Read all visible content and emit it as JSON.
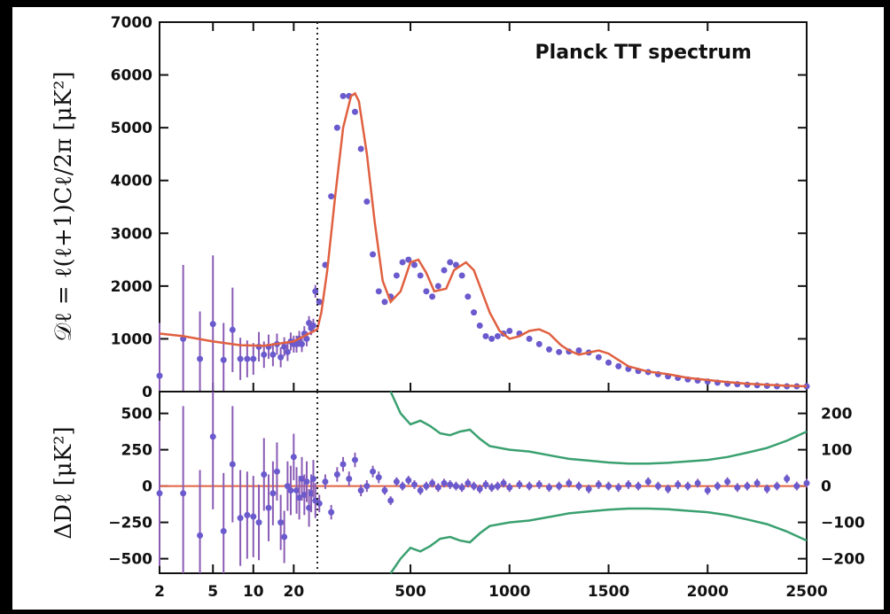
{
  "chart_data": [
    {
      "id": "top",
      "type": "scatter",
      "title": "Planck TT spectrum",
      "ylabel": "𝒟ℓ = ℓ(ℓ+1)Cℓ/2π  [μK²]",
      "xlabel": "",
      "xscale": "hybrid: log for ℓ<30, linear for ℓ≥30",
      "xlim": [
        2,
        2500
      ],
      "ylim": [
        0,
        7000
      ],
      "yticks": [
        "0",
        "1000",
        "2000",
        "3000",
        "4000",
        "5000",
        "6000",
        "7000"
      ],
      "ytick_values": [
        0,
        1000,
        2000,
        3000,
        4000,
        5000,
        6000,
        7000
      ],
      "colors": {
        "model": "#e06040",
        "binned": "#6a5acd",
        "errorbar": "#8a5bb5",
        "unbinned": "#999999",
        "divider": "#222222"
      },
      "model_curve": {
        "x": [
          2,
          3,
          5,
          8,
          12,
          20,
          30,
          50,
          80,
          120,
          160,
          200,
          220,
          240,
          280,
          320,
          360,
          400,
          450,
          500,
          540,
          580,
          620,
          680,
          720,
          780,
          820,
          860,
          900,
          950,
          1000,
          1050,
          1100,
          1150,
          1200,
          1260,
          1300,
          1350,
          1400,
          1450,
          1500,
          1550,
          1600,
          1700,
          1800,
          1900,
          2000,
          2100,
          2200,
          2300,
          2400,
          2500
        ],
        "y": [
          1100,
          1050,
          950,
          880,
          870,
          950,
          1180,
          1500,
          2300,
          3700,
          5000,
          5600,
          5650,
          5500,
          4500,
          3200,
          2100,
          1700,
          1900,
          2450,
          2500,
          2250,
          1900,
          1950,
          2300,
          2450,
          2300,
          1900,
          1500,
          1150,
          1000,
          1050,
          1150,
          1180,
          1100,
          880,
          780,
          700,
          740,
          780,
          720,
          600,
          480,
          380,
          330,
          260,
          220,
          180,
          150,
          130,
          110,
          100
        ]
      },
      "binned_points": {
        "x": [
          2,
          3,
          4,
          5,
          6,
          7,
          8,
          9,
          10,
          11,
          12,
          13,
          14,
          15,
          16,
          17,
          18,
          19,
          20,
          21,
          22,
          23,
          24,
          25,
          26,
          27,
          28,
          29,
          40,
          70,
          100,
          130,
          160,
          190,
          220,
          250,
          280,
          310,
          340,
          370,
          400,
          430,
          460,
          490,
          520,
          550,
          580,
          610,
          640,
          670,
          700,
          730,
          760,
          790,
          820,
          850,
          880,
          910,
          940,
          970,
          1000,
          1050,
          1100,
          1150,
          1200,
          1250,
          1300,
          1350,
          1400,
          1450,
          1500,
          1550,
          1600,
          1650,
          1700,
          1750,
          1800,
          1850,
          1900,
          1950,
          2000,
          2050,
          2100,
          2150,
          2200,
          2250,
          2300,
          2350,
          2400,
          2450,
          2500
        ],
        "y": [
          300,
          1000,
          620,
          1280,
          600,
          1170,
          620,
          620,
          620,
          850,
          700,
          850,
          700,
          900,
          650,
          850,
          750,
          950,
          900,
          900,
          1000,
          900,
          1100,
          1000,
          1300,
          1200,
          1250,
          1900,
          1700,
          2400,
          3700,
          5000,
          5600,
          5600,
          5300,
          4600,
          3600,
          2600,
          1900,
          1700,
          1800,
          2200,
          2450,
          2500,
          2400,
          2200,
          1900,
          1800,
          2000,
          2300,
          2450,
          2400,
          2200,
          1800,
          1500,
          1250,
          1050,
          1000,
          1050,
          1100,
          1150,
          1100,
          1000,
          900,
          800,
          750,
          760,
          780,
          740,
          650,
          550,
          480,
          430,
          390,
          370,
          330,
          290,
          260,
          230,
          210,
          190,
          170,
          150,
          140,
          130,
          120,
          110,
          100,
          100,
          100,
          100
        ],
        "err": [
          1000,
          1400,
          900,
          1300,
          700,
          800,
          400,
          350,
          300,
          280,
          250,
          230,
          220,
          200,
          190,
          180,
          170,
          170,
          160,
          160,
          150,
          150,
          140,
          140,
          130,
          130,
          130,
          120,
          60,
          50,
          50,
          50,
          50,
          50,
          50,
          40,
          40,
          40,
          40,
          30,
          30,
          30,
          30,
          30,
          30,
          30,
          30,
          30,
          30,
          30,
          30,
          30,
          30,
          30,
          30,
          30,
          30,
          30,
          30,
          30,
          30,
          30,
          30,
          30,
          30,
          30,
          30,
          30,
          30,
          30,
          30,
          30,
          30,
          30,
          30,
          30,
          30,
          30,
          30,
          30,
          30,
          30,
          30,
          30,
          30,
          30,
          30,
          30,
          30,
          30,
          30
        ]
      },
      "divider_x": 30
    },
    {
      "id": "bottom",
      "type": "scatter",
      "ylabel": "ΔDℓ [μK²]",
      "xlabel": "",
      "xlim": [
        2,
        2500
      ],
      "ylim": [
        -600,
        650
      ],
      "yticks_left": [
        "−500",
        "−250",
        "0",
        "250",
        "500"
      ],
      "ytick_left_values": [
        -500,
        -250,
        0,
        250,
        500
      ],
      "yticks_right": [
        "−200",
        "−100",
        "0",
        "100",
        "200"
      ],
      "ytick_right_values": [
        -200,
        -100,
        0,
        100,
        200
      ],
      "ylim_right": [
        -240,
        260
      ],
      "xticks": [
        "2",
        "5",
        "10",
        "20",
        "500",
        "1000",
        "1500",
        "2000",
        "2500"
      ],
      "xtick_values": [
        2,
        5,
        10,
        20,
        500,
        1000,
        1500,
        2000,
        2500
      ],
      "envelope_curve_right_axis": {
        "x": [
          400,
          450,
          500,
          550,
          600,
          650,
          700,
          750,
          800,
          850,
          900,
          1000,
          1100,
          1200,
          1300,
          1400,
          1500,
          1600,
          1700,
          1800,
          1900,
          2000,
          2100,
          2200,
          2300,
          2400,
          2500
        ],
        "y": [
          280,
          200,
          170,
          180,
          165,
          145,
          140,
          150,
          155,
          130,
          110,
          100,
          95,
          85,
          75,
          70,
          65,
          62,
          62,
          64,
          68,
          72,
          80,
          92,
          105,
          125,
          150
        ]
      },
      "residual_points": {
        "x": [
          2,
          3,
          4,
          5,
          6,
          7,
          8,
          9,
          10,
          11,
          12,
          13,
          14,
          15,
          16,
          17,
          18,
          19,
          20,
          21,
          22,
          23,
          24,
          25,
          26,
          27,
          28,
          29,
          40,
          70,
          100,
          130,
          160,
          190,
          220,
          250,
          280,
          310,
          340,
          370,
          400,
          430,
          460,
          490,
          520,
          550,
          580,
          610,
          640,
          670,
          700,
          730,
          760,
          790,
          820,
          850,
          880,
          910,
          940,
          970,
          1000,
          1050,
          1100,
          1150,
          1200,
          1250,
          1300,
          1350,
          1400,
          1450,
          1500,
          1550,
          1600,
          1650,
          1700,
          1750,
          1800,
          1850,
          1900,
          1950,
          2000,
          2050,
          2100,
          2150,
          2200,
          2250,
          2300,
          2350,
          2400,
          2450,
          2500
        ],
        "y": [
          -50,
          -50,
          -340,
          340,
          -310,
          150,
          -220,
          -200,
          -210,
          -250,
          80,
          -150,
          -50,
          100,
          -250,
          -350,
          0,
          -30,
          200,
          -30,
          -80,
          50,
          -60,
          30,
          -150,
          -50,
          50,
          -100,
          -120,
          30,
          -180,
          80,
          150,
          50,
          180,
          -30,
          0,
          100,
          60,
          -30,
          -100,
          30,
          0,
          40,
          10,
          -30,
          0,
          20,
          -10,
          20,
          10,
          0,
          -10,
          20,
          0,
          -20,
          10,
          -10,
          0,
          20,
          -10,
          10,
          0,
          10,
          -10,
          0,
          20,
          0,
          -20,
          10,
          0,
          -10,
          10,
          0,
          30,
          0,
          -20,
          10,
          0,
          20,
          -30,
          0,
          30,
          -10,
          0,
          20,
          -20,
          0,
          50,
          0,
          20
        ],
        "err": [
          500,
          600,
          450,
          500,
          400,
          400,
          330,
          300,
          280,
          260,
          250,
          230,
          220,
          200,
          190,
          180,
          170,
          170,
          160,
          160,
          150,
          150,
          140,
          140,
          130,
          130,
          130,
          120,
          60,
          50,
          50,
          50,
          50,
          50,
          50,
          40,
          40,
          40,
          40,
          30,
          30,
          30,
          30,
          30,
          30,
          30,
          30,
          30,
          30,
          30,
          30,
          30,
          30,
          30,
          30,
          30,
          30,
          30,
          30,
          30,
          30,
          30,
          30,
          30,
          30,
          30,
          30,
          30,
          30,
          30,
          30,
          30,
          30,
          30,
          30,
          30,
          30,
          30,
          30,
          30,
          30,
          30,
          30,
          30,
          30,
          30,
          30,
          30,
          30,
          30,
          30
        ]
      },
      "divider_x": 30,
      "colors": {
        "zero_line": "#e06040",
        "envelope": "#3aa070",
        "binned": "#6a5acd",
        "errorbar": "#8a5bb5"
      }
    }
  ]
}
